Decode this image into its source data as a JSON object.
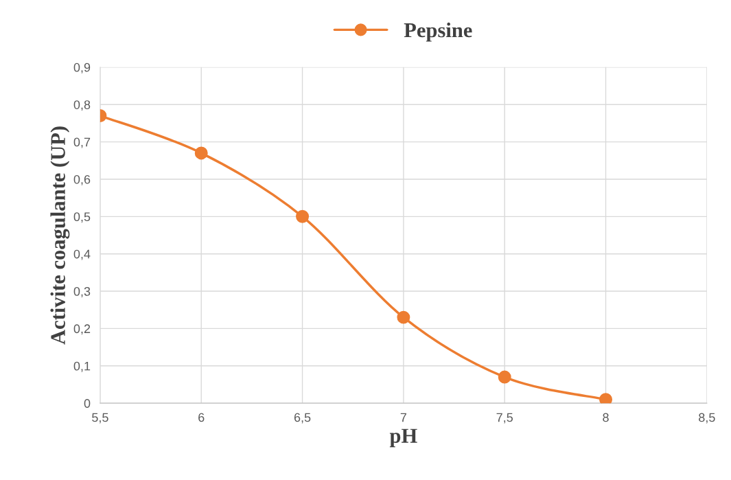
{
  "chart_data": {
    "type": "line",
    "xlabel": "pH",
    "ylabel": "Activite coagulante (UP)",
    "x": [
      5.5,
      6,
      6.5,
      7,
      7.5,
      8
    ],
    "series": [
      {
        "name": "Pepsine",
        "color": "#ed7d31",
        "values": [
          0.77,
          0.67,
          0.5,
          0.23,
          0.07,
          0.01
        ]
      }
    ],
    "xlim": [
      5.5,
      8.5
    ],
    "xticks": [
      {
        "value": 5.5,
        "label": "5,5"
      },
      6,
      {
        "value": 6.5,
        "label": "6,5"
      },
      7,
      {
        "value": 7.5,
        "label": "7,5"
      },
      8,
      {
        "value": 8.5,
        "label": "8,5"
      }
    ],
    "ylim": [
      0,
      0.9
    ],
    "yticks": [
      0,
      {
        "value": 0.1,
        "label": "0,1"
      },
      {
        "value": 0.2,
        "label": "0,2"
      },
      {
        "value": 0.3,
        "label": "0,3"
      },
      {
        "value": 0.4,
        "label": "0,4"
      },
      {
        "value": 0.5,
        "label": "0,5"
      },
      {
        "value": 0.6,
        "label": "0,6"
      },
      {
        "value": 0.7,
        "label": "0,7"
      },
      {
        "value": 0.8,
        "label": "0,8"
      },
      {
        "value": 0.9,
        "label": "0,9"
      }
    ],
    "grid": true,
    "legend": "top",
    "marker": "circle",
    "line_style": "solid"
  }
}
